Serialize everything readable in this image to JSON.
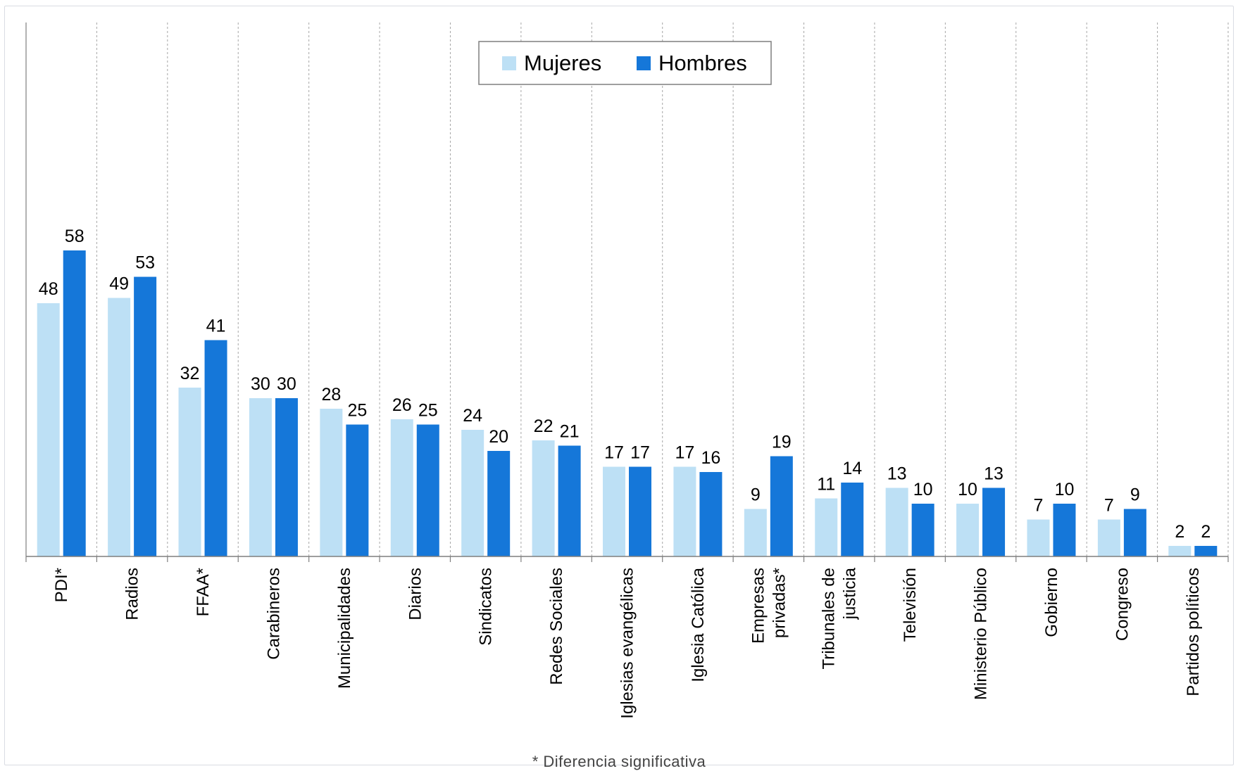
{
  "chart_data": {
    "type": "bar",
    "title": "",
    "xlabel": "",
    "ylabel": "",
    "ylim": [
      0,
      80
    ],
    "grid": "vertical dashed separators between categories",
    "legend_position": "top-center",
    "categories": [
      "PDI*",
      "Radios",
      "FFAA*",
      "Carabineros",
      "Municipalidades",
      "Diarios",
      "Sindicatos",
      "Redes Sociales",
      "Iglesias evangélicas",
      "Iglesia Católica",
      "Empresas privadas*",
      "Tribunales de justicia",
      "Televisión",
      "Ministerio Público",
      "Gobierno",
      "Congreso",
      "Partidos políticos"
    ],
    "category_lines": [
      [
        "PDI*"
      ],
      [
        "Radios"
      ],
      [
        "FFAA*"
      ],
      [
        "Carabineros"
      ],
      [
        "Municipalidades"
      ],
      [
        "Diarios"
      ],
      [
        "Sindicatos"
      ],
      [
        "Redes Sociales"
      ],
      [
        "Iglesias evangélicas"
      ],
      [
        "Iglesia Católica"
      ],
      [
        "Empresas",
        "privadas*"
      ],
      [
        "Tribunales de",
        "justicia"
      ],
      [
        "Televisión"
      ],
      [
        "Ministerio Público"
      ],
      [
        "Gobierno"
      ],
      [
        "Congreso"
      ],
      [
        "Partidos políticos"
      ]
    ],
    "series": [
      {
        "name": "Mujeres",
        "color": "#bde0f5",
        "values": [
          48,
          49,
          32,
          30,
          28,
          26,
          24,
          22,
          17,
          17,
          9,
          11,
          13,
          10,
          7,
          7,
          2
        ]
      },
      {
        "name": "Hombres",
        "color": "#1577d9",
        "values": [
          58,
          53,
          41,
          30,
          25,
          25,
          20,
          21,
          17,
          16,
          19,
          14,
          10,
          13,
          10,
          9,
          2
        ]
      }
    ],
    "footnote": "* Diferencia significativa"
  }
}
